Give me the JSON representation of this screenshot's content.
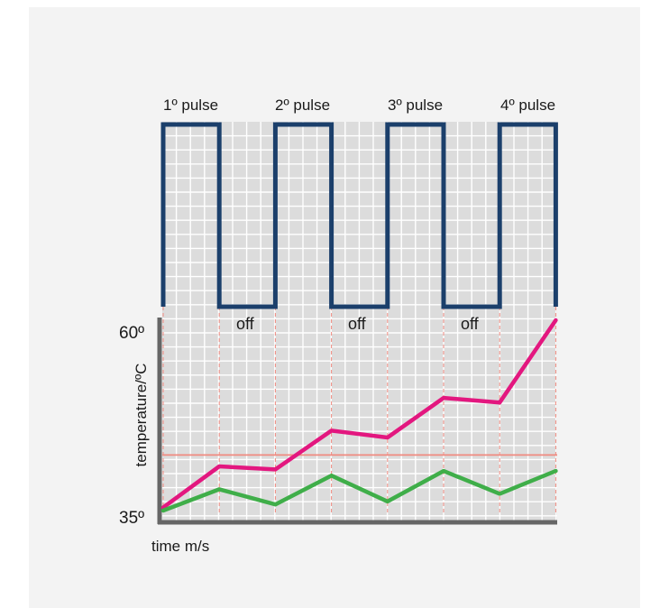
{
  "pulse_labels": [
    "1º pulse",
    "2º pulse",
    "3º pulse",
    "4º pulse"
  ],
  "off_label": "off",
  "y_axis_label": "temperature/ºC",
  "x_axis_label": "time m/s",
  "y_tick_top": "60º",
  "y_tick_bottom": "35º",
  "colors": {
    "background": "#f3f3f3",
    "grid_fill": "#dcdcdc",
    "grid_line": "#ffffff",
    "pulse": "#1b3f6b",
    "axis": "#666666",
    "threshold": "#f08a80",
    "guide": "#f08a80",
    "series_1": "#e3177f",
    "series_2": "#3fae49"
  },
  "chart_data": {
    "type": "line",
    "ylim": [
      35,
      60
    ],
    "y_ticks": [
      35,
      60
    ],
    "ylabel": "temperature/ºC",
    "xlabel": "time m/s",
    "threshold_y": 42.3,
    "x": [
      0,
      1,
      2,
      3,
      4,
      5,
      6,
      7
    ],
    "series": [
      {
        "color": "#e3177f",
        "values": [
          35.4,
          40.8,
          40.4,
          45.5,
          44.6,
          49.8,
          49.2,
          60.0
        ]
      },
      {
        "color": "#3fae49",
        "values": [
          35.0,
          37.8,
          35.8,
          39.6,
          36.2,
          40.2,
          37.2,
          40.2
        ]
      }
    ],
    "pulses": {
      "count": 4,
      "on_off_pattern": [
        "on",
        "off",
        "on",
        "off",
        "on",
        "off",
        "on"
      ]
    }
  }
}
